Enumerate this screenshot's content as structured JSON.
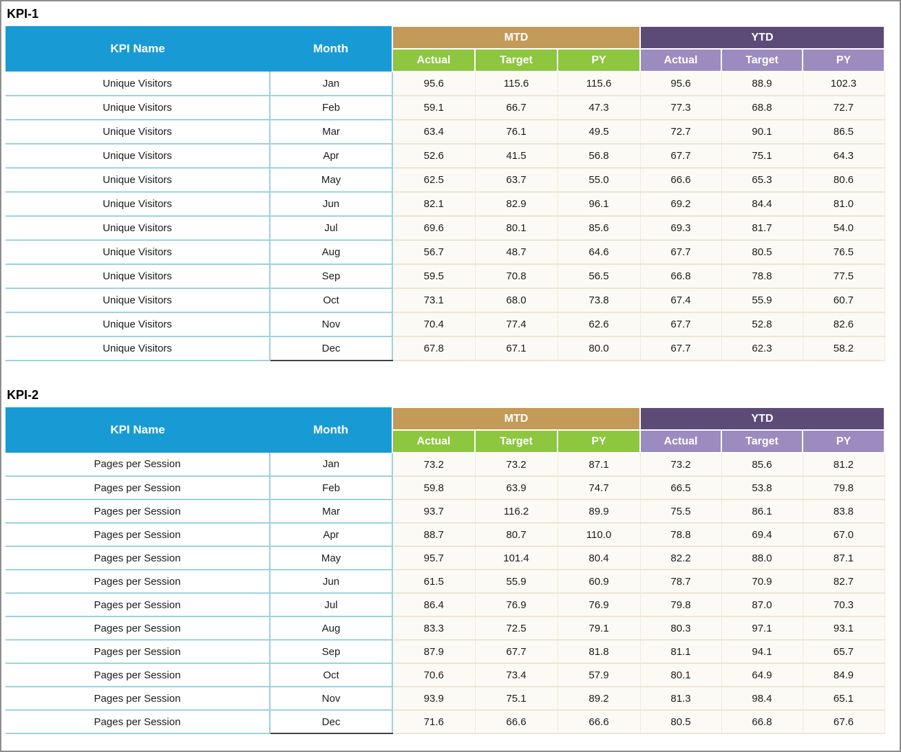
{
  "headers": {
    "kpi_name": "KPI Name",
    "month": "Month",
    "mtd": "MTD",
    "ytd": "YTD",
    "sub": [
      "Actual",
      "Target",
      "PY"
    ]
  },
  "colors": {
    "header_cyan": "#189BD5",
    "header_tan": "#C49A58",
    "header_green": "#8DC63F",
    "header_purple_dark": "#5C4B77",
    "header_purple_light": "#9C8BBE",
    "numeric_cell_bg": "#FCFAF4",
    "numeric_cell_border": "#EDE5D3",
    "row_rule_cyan": "#9AD2DE",
    "last_row_rule_dark": "#404040",
    "outer_border": "#8C8C8C"
  },
  "tables": [
    {
      "title": "KPI-1",
      "kpi_name": "Unique Visitors",
      "rows": [
        {
          "month": "Jan",
          "mtd": [
            "95.6",
            "115.6",
            "115.6"
          ],
          "ytd": [
            "95.6",
            "88.9",
            "102.3"
          ]
        },
        {
          "month": "Feb",
          "mtd": [
            "59.1",
            "66.7",
            "47.3"
          ],
          "ytd": [
            "77.3",
            "68.8",
            "72.7"
          ]
        },
        {
          "month": "Mar",
          "mtd": [
            "63.4",
            "76.1",
            "49.5"
          ],
          "ytd": [
            "72.7",
            "90.1",
            "86.5"
          ]
        },
        {
          "month": "Apr",
          "mtd": [
            "52.6",
            "41.5",
            "56.8"
          ],
          "ytd": [
            "67.7",
            "75.1",
            "64.3"
          ]
        },
        {
          "month": "May",
          "mtd": [
            "62.5",
            "63.7",
            "55.0"
          ],
          "ytd": [
            "66.6",
            "65.3",
            "80.6"
          ]
        },
        {
          "month": "Jun",
          "mtd": [
            "82.1",
            "82.9",
            "96.1"
          ],
          "ytd": [
            "69.2",
            "84.4",
            "81.0"
          ]
        },
        {
          "month": "Jul",
          "mtd": [
            "69.6",
            "80.1",
            "85.6"
          ],
          "ytd": [
            "69.3",
            "81.7",
            "54.0"
          ]
        },
        {
          "month": "Aug",
          "mtd": [
            "56.7",
            "48.7",
            "64.6"
          ],
          "ytd": [
            "67.7",
            "80.5",
            "76.5"
          ]
        },
        {
          "month": "Sep",
          "mtd": [
            "59.5",
            "70.8",
            "56.5"
          ],
          "ytd": [
            "66.8",
            "78.8",
            "77.5"
          ]
        },
        {
          "month": "Oct",
          "mtd": [
            "73.1",
            "68.0",
            "73.8"
          ],
          "ytd": [
            "67.4",
            "55.9",
            "60.7"
          ]
        },
        {
          "month": "Nov",
          "mtd": [
            "70.4",
            "77.4",
            "62.6"
          ],
          "ytd": [
            "67.7",
            "52.8",
            "82.6"
          ]
        },
        {
          "month": "Dec",
          "mtd": [
            "67.8",
            "67.1",
            "80.0"
          ],
          "ytd": [
            "67.7",
            "62.3",
            "58.2"
          ]
        }
      ]
    },
    {
      "title": "KPI-2",
      "kpi_name": "Pages per Session",
      "rows": [
        {
          "month": "Jan",
          "mtd": [
            "73.2",
            "73.2",
            "87.1"
          ],
          "ytd": [
            "73.2",
            "85.6",
            "81.2"
          ]
        },
        {
          "month": "Feb",
          "mtd": [
            "59.8",
            "63.9",
            "74.7"
          ],
          "ytd": [
            "66.5",
            "53.8",
            "79.8"
          ]
        },
        {
          "month": "Mar",
          "mtd": [
            "93.7",
            "116.2",
            "89.9"
          ],
          "ytd": [
            "75.5",
            "86.1",
            "83.8"
          ]
        },
        {
          "month": "Apr",
          "mtd": [
            "88.7",
            "80.7",
            "110.0"
          ],
          "ytd": [
            "78.8",
            "69.4",
            "67.0"
          ]
        },
        {
          "month": "May",
          "mtd": [
            "95.7",
            "101.4",
            "80.4"
          ],
          "ytd": [
            "82.2",
            "88.0",
            "87.1"
          ]
        },
        {
          "month": "Jun",
          "mtd": [
            "61.5",
            "55.9",
            "60.9"
          ],
          "ytd": [
            "78.7",
            "70.9",
            "82.7"
          ]
        },
        {
          "month": "Jul",
          "mtd": [
            "86.4",
            "76.9",
            "76.9"
          ],
          "ytd": [
            "79.8",
            "87.0",
            "70.3"
          ]
        },
        {
          "month": "Aug",
          "mtd": [
            "83.3",
            "72.5",
            "79.1"
          ],
          "ytd": [
            "80.3",
            "97.1",
            "93.1"
          ]
        },
        {
          "month": "Sep",
          "mtd": [
            "87.9",
            "67.7",
            "81.8"
          ],
          "ytd": [
            "81.1",
            "94.1",
            "65.7"
          ]
        },
        {
          "month": "Oct",
          "mtd": [
            "70.6",
            "73.4",
            "57.9"
          ],
          "ytd": [
            "80.1",
            "64.9",
            "84.9"
          ]
        },
        {
          "month": "Nov",
          "mtd": [
            "93.9",
            "75.1",
            "89.2"
          ],
          "ytd": [
            "81.3",
            "98.4",
            "65.1"
          ]
        },
        {
          "month": "Dec",
          "mtd": [
            "71.6",
            "66.6",
            "66.6"
          ],
          "ytd": [
            "80.5",
            "66.8",
            "67.6"
          ]
        }
      ]
    }
  ]
}
